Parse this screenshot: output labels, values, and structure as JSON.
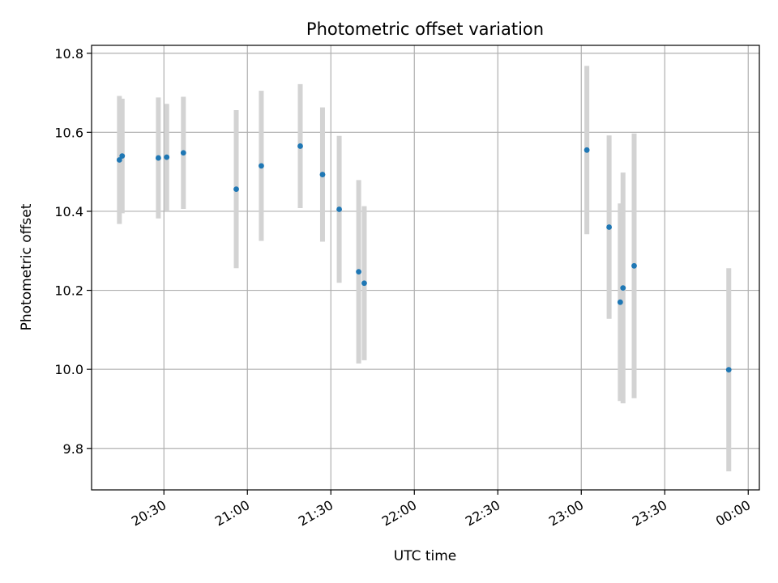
{
  "chart_data": {
    "type": "scatter",
    "title": "Photometric offset variation",
    "xlabel": "UTC time",
    "ylabel": "Photometric offset",
    "x_axis_type": "time",
    "xlim": [
      "20:04",
      "00:04"
    ],
    "ylim": [
      9.695,
      10.82
    ],
    "x_ticks": [
      "20:30",
      "21:00",
      "21:30",
      "22:00",
      "22:30",
      "23:00",
      "23:30",
      "00:00"
    ],
    "y_ticks": [
      "9.8",
      "10.0",
      "10.2",
      "10.4",
      "10.6",
      "10.8"
    ],
    "grid": true,
    "point_color": "#1f77b4",
    "errorbar_color": "#d3d3d3",
    "points": [
      {
        "t": "20:14",
        "y": 10.53,
        "err": 0.162
      },
      {
        "t": "20:15",
        "y": 10.54,
        "err": 0.145
      },
      {
        "t": "20:28",
        "y": 10.535,
        "err": 0.153
      },
      {
        "t": "20:31",
        "y": 10.537,
        "err": 0.135
      },
      {
        "t": "20:37",
        "y": 10.548,
        "err": 0.142
      },
      {
        "t": "20:56",
        "y": 10.456,
        "err": 0.2
      },
      {
        "t": "21:05",
        "y": 10.515,
        "err": 0.19
      },
      {
        "t": "21:19",
        "y": 10.565,
        "err": 0.157
      },
      {
        "t": "21:27",
        "y": 10.493,
        "err": 0.17
      },
      {
        "t": "21:33",
        "y": 10.405,
        "err": 0.186
      },
      {
        "t": "21:40",
        "y": 10.247,
        "err": 0.232
      },
      {
        "t": "21:42",
        "y": 10.218,
        "err": 0.195
      },
      {
        "t": "23:02",
        "y": 10.555,
        "err": 0.213
      },
      {
        "t": "23:10",
        "y": 10.36,
        "err": 0.232
      },
      {
        "t": "23:14",
        "y": 10.17,
        "err": 0.25
      },
      {
        "t": "23:15",
        "y": 10.206,
        "err": 0.292
      },
      {
        "t": "23:19",
        "y": 10.262,
        "err": 0.335
      },
      {
        "t": "23:53",
        "y": 9.999,
        "err": 0.257
      }
    ]
  }
}
